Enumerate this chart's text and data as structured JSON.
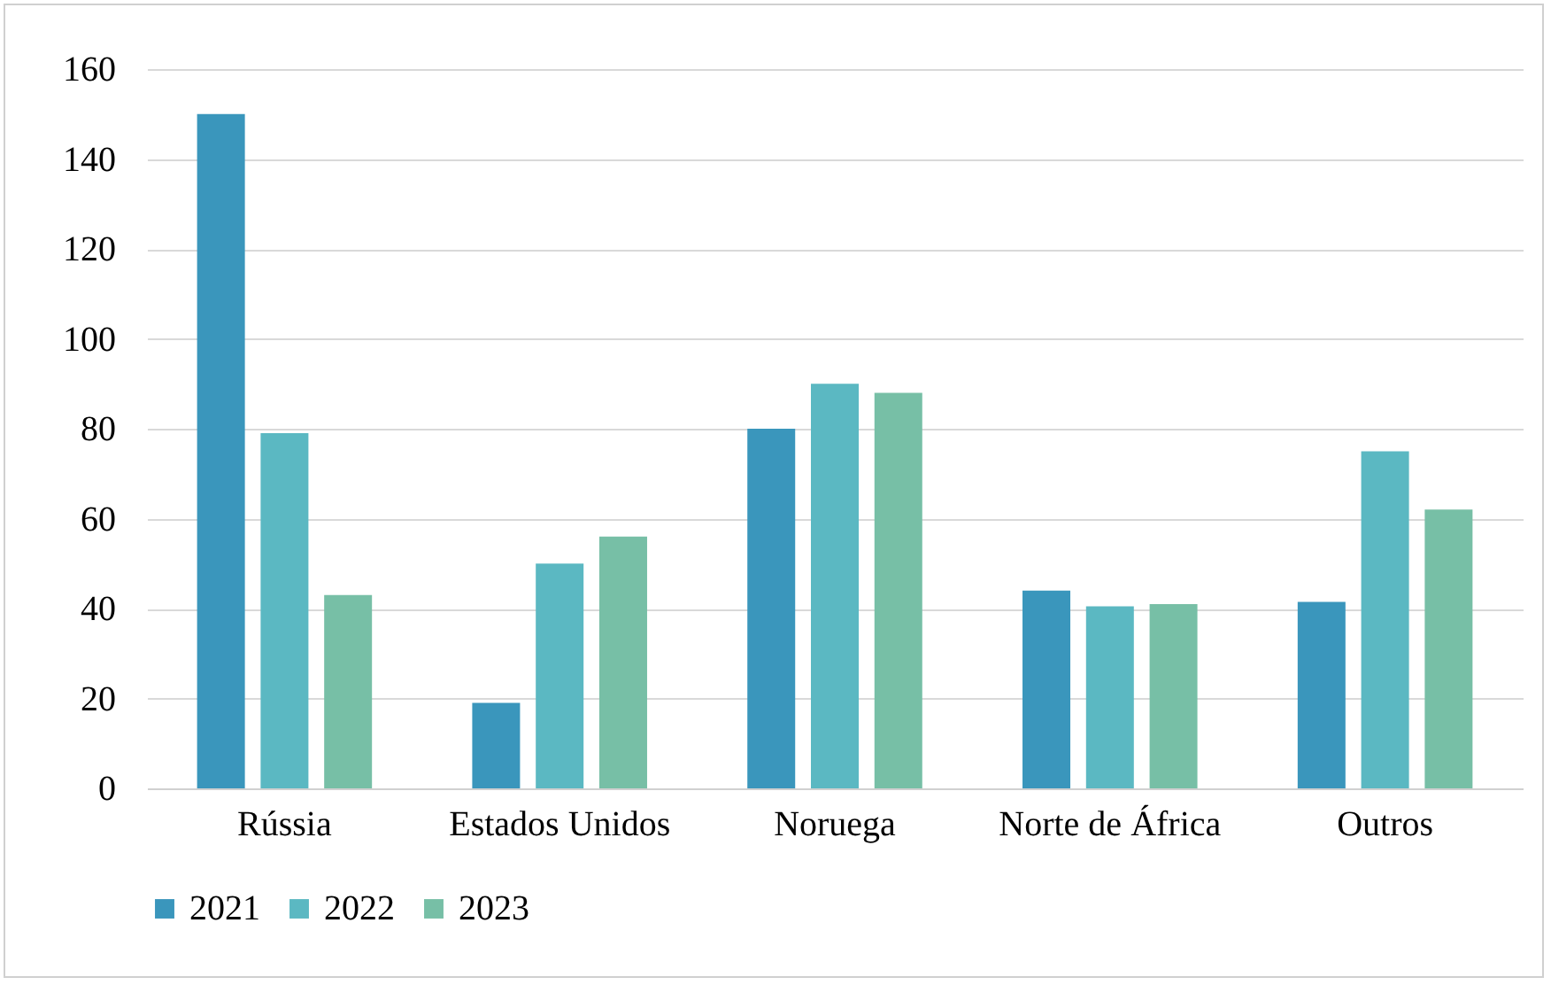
{
  "chart_data": {
    "type": "bar",
    "categories": [
      "Rússia",
      "Estados Unidos",
      "Noruega",
      "Norte de África",
      "Outros"
    ],
    "series": [
      {
        "name": "2021",
        "color": "#3a96bc",
        "values": [
          150,
          19,
          80,
          44,
          41.5
        ]
      },
      {
        "name": "2022",
        "color": "#5bb8c2",
        "values": [
          79,
          50,
          90,
          40.5,
          75
        ]
      },
      {
        "name": "2023",
        "color": "#77bfa6",
        "values": [
          43,
          56,
          88,
          41,
          62
        ]
      }
    ],
    "ylim": [
      0,
      160
    ],
    "yticks": [
      0,
      20,
      40,
      60,
      80,
      100,
      120,
      140,
      160
    ],
    "grid": "y",
    "legend": "bottom"
  }
}
